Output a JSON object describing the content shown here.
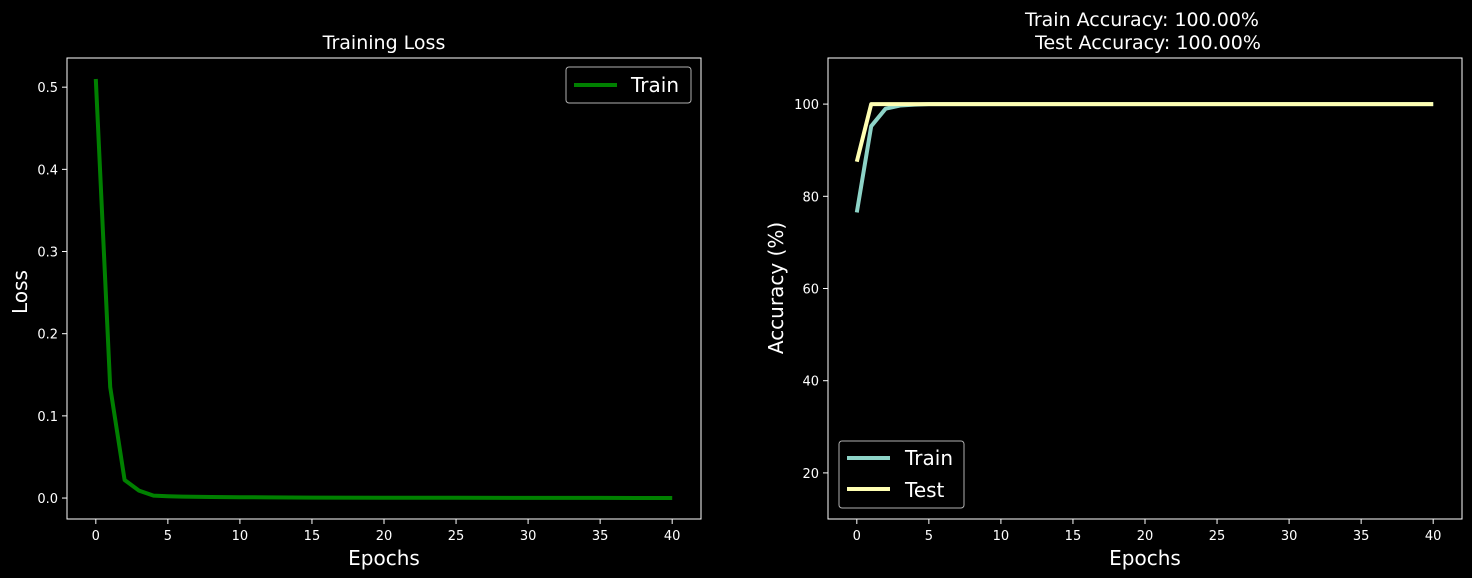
{
  "colors": {
    "background": "#000000",
    "axes": "#ffffff",
    "loss_train": "#008000",
    "acc_train": "#8dd3c7",
    "acc_test": "#ffffb3"
  },
  "chart_data": [
    {
      "type": "line",
      "title": "Training Loss",
      "xlabel": "Epochs",
      "ylabel": "Loss",
      "xlim": [
        -2,
        42
      ],
      "ylim": [
        -0.0255,
        0.5355
      ],
      "xticks": [
        0,
        5,
        10,
        15,
        20,
        25,
        30,
        35,
        40
      ],
      "yticks": [
        0.0,
        0.1,
        0.2,
        0.3,
        0.4,
        0.5
      ],
      "ytick_labels": [
        "0.0",
        "0.1",
        "0.2",
        "0.3",
        "0.4",
        "0.5"
      ],
      "legend_position": "top-right",
      "grid": false,
      "series": [
        {
          "name": "Train",
          "color": "#008000",
          "x": [
            0,
            1,
            2,
            3,
            4,
            5,
            6,
            8,
            10,
            12,
            15,
            20,
            25,
            30,
            35,
            40
          ],
          "y": [
            0.51,
            0.135,
            0.022,
            0.009,
            0.003,
            0.0022,
            0.0017,
            0.0013,
            0.001,
            0.0008,
            0.0006,
            0.0004,
            0.0003,
            0.0002,
            0.0002,
            0.0001
          ]
        }
      ]
    },
    {
      "type": "line",
      "title": "Train Accuracy: 100.00%\nTest Accuracy: 100.00%",
      "title_lines": [
        "Train Accuracy: 100.00%",
        "Test Accuracy: 100.00%"
      ],
      "xlabel": "Epochs",
      "ylabel": "Accuracy (%)",
      "xlim": [
        -2,
        42
      ],
      "ylim": [
        10,
        110
      ],
      "xticks": [
        0,
        5,
        10,
        15,
        20,
        25,
        30,
        35,
        40
      ],
      "yticks": [
        20,
        40,
        60,
        80,
        100
      ],
      "ytick_labels": [
        "20",
        "40",
        "60",
        "80",
        "100"
      ],
      "legend_position": "bottom-left",
      "grid": false,
      "series": [
        {
          "name": "Train",
          "color": "#8dd3c7",
          "x": [
            0,
            1,
            2,
            3,
            4,
            5,
            6,
            10,
            20,
            30,
            40
          ],
          "y": [
            76.5,
            95.2,
            99.0,
            99.7,
            99.9,
            100,
            100,
            100,
            100,
            100,
            100
          ]
        },
        {
          "name": "Test",
          "color": "#ffffb3",
          "x": [
            0,
            1,
            2,
            3,
            4,
            5,
            10,
            20,
            30,
            40
          ],
          "y": [
            87.5,
            100,
            100,
            100,
            100,
            100,
            100,
            100,
            100,
            100
          ]
        }
      ]
    }
  ]
}
